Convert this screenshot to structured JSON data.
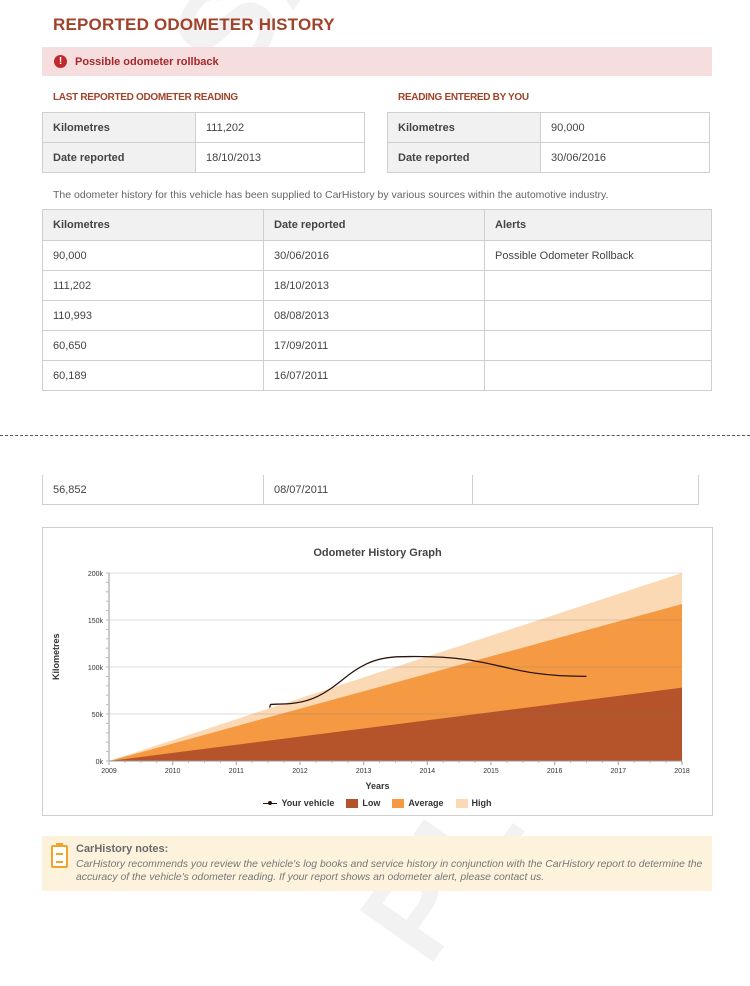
{
  "watermark": {
    "part1": "SAM",
    "part2": "PLE"
  },
  "page": {
    "title": "REPORTED ODOMETER HISTORY",
    "alert": "Possible odometer rollback",
    "page_note": "The odometer history for this vehicle has been supplied to CarHistory by various sources within the automotive industry."
  },
  "last_reported": {
    "heading": "LAST REPORTED ODOMETER READING",
    "rows": [
      {
        "label": "Kilometres",
        "value": "111,202"
      },
      {
        "label": "Date reported",
        "value": "18/10/2013"
      }
    ]
  },
  "entered": {
    "heading": "READING ENTERED BY YOU",
    "rows": [
      {
        "label": "Kilometres",
        "value": "90,000"
      },
      {
        "label": "Date reported",
        "value": "30/06/2016"
      }
    ]
  },
  "history": {
    "headers": [
      "Kilometres",
      "Date reported",
      "Alerts"
    ],
    "rows": [
      [
        "90,000",
        "30/06/2016",
        "Possible Odometer Rollback"
      ],
      [
        "111,202",
        "18/10/2013",
        ""
      ],
      [
        "110,993",
        "08/08/2013",
        ""
      ],
      [
        "60,650",
        "17/09/2011",
        ""
      ],
      [
        "60,189",
        "16/07/2011",
        ""
      ]
    ],
    "continued_rows": [
      [
        "56,852",
        "08/07/2011",
        ""
      ]
    ]
  },
  "chart_data": {
    "type": "area",
    "title": "Odometer History Graph",
    "xlabel": "Years",
    "ylabel": "Kilometres",
    "xlim": [
      2009,
      2018
    ],
    "ylim": [
      0,
      200000
    ],
    "x_ticks": [
      "2009",
      "2010",
      "2011",
      "2012",
      "2013",
      "2014",
      "2015",
      "2016",
      "2017",
      "2018"
    ],
    "y_ticks": [
      "0k",
      "50k",
      "100k",
      "150k",
      "200k"
    ],
    "y_tick_values": [
      0,
      50000,
      100000,
      150000,
      200000
    ],
    "grid": true,
    "legend_position": "bottom",
    "series": [
      {
        "name": "High",
        "type": "area",
        "color": "#fbd9b4",
        "x": [
          2009,
          2018
        ],
        "y": [
          0,
          200000
        ]
      },
      {
        "name": "Average",
        "type": "area",
        "color": "#f59a42",
        "x": [
          2009,
          2018
        ],
        "y": [
          0,
          167000
        ]
      },
      {
        "name": "Low",
        "type": "area",
        "color": "#b5542a",
        "x": [
          2009,
          2018
        ],
        "y": [
          0,
          78000
        ]
      },
      {
        "name": "Your vehicle",
        "type": "line",
        "color": "#2a1410",
        "x": [
          2011.52,
          2011.54,
          2011.71,
          2013.6,
          2013.82,
          2016.5
        ],
        "y": [
          56852,
          60189,
          60650,
          110993,
          111202,
          90000
        ]
      }
    ]
  },
  "notes": {
    "title": "CarHistory notes:",
    "text": "CarHistory recommends you review the vehicle's log books and service history in conjunction with the CarHistory report to determine the accuracy of the vehicle's odometer reading. If your report shows an odometer alert, please contact us."
  }
}
